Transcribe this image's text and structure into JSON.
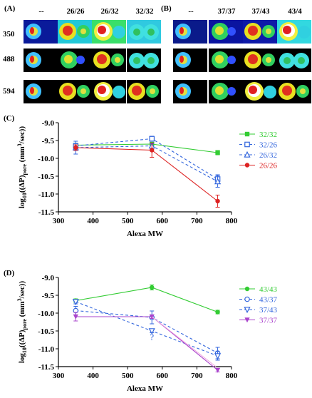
{
  "panel_a": {
    "label": "(A)",
    "columns": [
      "--",
      "26/26",
      "26/32",
      "32/32"
    ],
    "rows": [
      "350",
      "488",
      "594"
    ]
  },
  "panel_b": {
    "label": "(B)",
    "columns": [
      "--",
      "37/37",
      "37/43",
      "43/4"
    ]
  },
  "panel_c": {
    "label": "(C)",
    "ylabel_main": "log",
    "ylabel_sub": "10",
    "ylabel_rest": "((ΔP)",
    "ylabel_pore": "pore",
    "ylabel_units": " (mm",
    "ylabel_exp": "3",
    "ylabel_end": "/sec))",
    "xlabel": "Alexa MW"
  },
  "panel_d": {
    "label": "(D)",
    "xlabel": "Alexa MW",
    "question_mark": "?"
  },
  "chart_data": [
    {
      "type": "line",
      "xlabel": "Alexa MW",
      "ylabel": "log10((ΔP)pore (mm3/sec))",
      "xlim": [
        300,
        800
      ],
      "ylim": [
        -11.5,
        -9.0
      ],
      "x_ticks": [
        "300",
        "400",
        "500",
        "600",
        "700",
        "800"
      ],
      "y_ticks": [
        "-9.0",
        "-9.5",
        "-10.0",
        "-10.5",
        "-11.0",
        "-11.5"
      ],
      "legend_position": "right",
      "series": [
        {
          "name": "32/32",
          "color": "#33cc33",
          "marker": "square-filled",
          "dash": false,
          "x": [
            350,
            570,
            760
          ],
          "y": [
            -9.63,
            -9.6,
            -9.84
          ],
          "err": [
            0.05,
            0.05,
            0.06
          ]
        },
        {
          "name": "32/26",
          "color": "#3366dd",
          "marker": "square-open",
          "dash": true,
          "x": [
            350,
            570,
            760
          ],
          "y": [
            -9.65,
            -9.45,
            -10.58
          ],
          "err": [
            0.07,
            0.07,
            0.12
          ]
        },
        {
          "name": "26/32",
          "color": "#3366dd",
          "marker": "triangle-up",
          "dash": true,
          "x": [
            350,
            570,
            760
          ],
          "y": [
            -9.7,
            -9.65,
            -10.65
          ],
          "err": [
            0.18,
            0.06,
            0.16
          ]
        },
        {
          "name": "26/26",
          "color": "#dd2222",
          "marker": "circle-filled",
          "dash": false,
          "x": [
            350,
            570,
            760
          ],
          "y": [
            -9.7,
            -9.77,
            -11.2
          ],
          "err": [
            0.08,
            0.2,
            0.17
          ]
        }
      ]
    },
    {
      "type": "line",
      "xlabel": "Alexa MW",
      "ylabel": "log10((ΔP)pore (mm3/sec))",
      "xlim": [
        300,
        800
      ],
      "ylim": [
        -11.5,
        -9.0
      ],
      "x_ticks": [
        "300",
        "400",
        "500",
        "600",
        "700",
        "800"
      ],
      "y_ticks": [
        "-9.0",
        "-9.5",
        "-10.0",
        "-10.5",
        "-11.0",
        "-11.5"
      ],
      "legend_position": "right",
      "series": [
        {
          "name": "43/43",
          "color": "#33cc33",
          "marker": "circle-filled",
          "dash": false,
          "x": [
            350,
            570,
            760
          ],
          "y": [
            -9.65,
            -9.28,
            -9.97
          ],
          "err": [
            0.05,
            0.07,
            0.05
          ]
        },
        {
          "name": "43/37",
          "color": "#3366dd",
          "marker": "circle-open",
          "dash": true,
          "x": [
            350,
            570,
            760
          ],
          "y": [
            -9.93,
            -10.12,
            -11.12
          ],
          "err": [
            0.12,
            0.18,
            0.16
          ]
        },
        {
          "name": "37/43",
          "color": "#3366dd",
          "marker": "triangle-down",
          "dash": true,
          "x": [
            350,
            570,
            760
          ],
          "y": [
            -9.68,
            -10.5,
            -11.2
          ],
          "err": [
            0.06,
            0.05,
            0.12
          ]
        },
        {
          "name": "37/37",
          "color": "#aa44cc",
          "marker": "triangle-down-filled",
          "dash": false,
          "x": [
            350,
            570,
            760
          ],
          "y": [
            -10.1,
            -10.1,
            -11.6
          ],
          "err": [
            0.12,
            0.05,
            0.05
          ]
        }
      ]
    }
  ]
}
